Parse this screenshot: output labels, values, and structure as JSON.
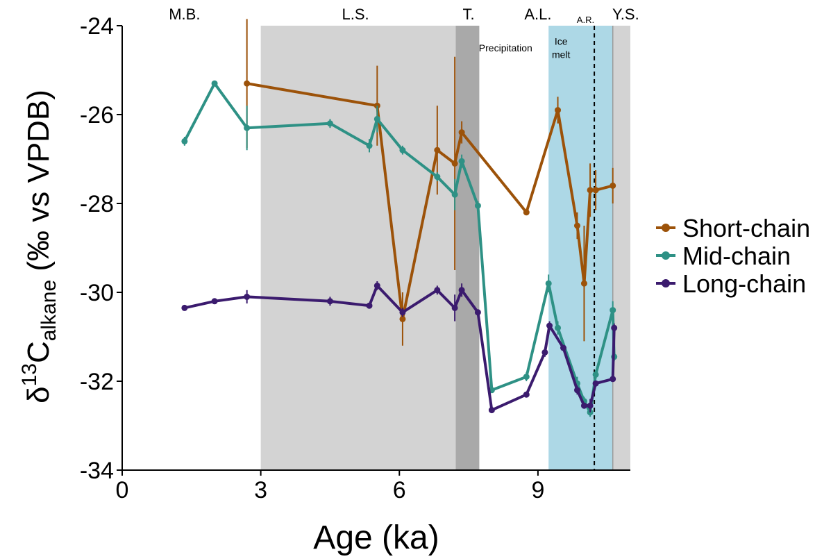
{
  "chart_data": {
    "type": "line",
    "xlabel": "Age (ka)",
    "ylabel_main": "δ",
    "ylabel_sup": "13",
    "ylabel_c": "C",
    "ylabel_sub": "alkane",
    "ylabel_tail": " (‰ vs VPDB)",
    "xlim": [
      0,
      11
    ],
    "ylim": [
      -34,
      -24
    ],
    "x_ticks": [
      "0",
      "3",
      "6",
      "9"
    ],
    "x_tick_values": [
      0,
      3,
      6,
      9
    ],
    "y_ticks": [
      "-34",
      "-32",
      "-30",
      "-28",
      "-26",
      "-24"
    ],
    "y_tick_values": [
      -34,
      -32,
      -30,
      -28,
      -26,
      -24
    ],
    "periods": [
      {
        "label": "M.B.",
        "x": 1.35
      },
      {
        "label": "L.S.",
        "x": 5.05
      },
      {
        "label": "T.",
        "x": 7.5
      },
      {
        "label": "A.L.",
        "x": 9.0
      },
      {
        "label": "A.R.",
        "x": 10.03
      },
      {
        "label": "Y.S.",
        "x": 10.9
      }
    ],
    "shaded_regions": [
      {
        "x0": 3.0,
        "x1": 7.22,
        "color": "#d3d3d3"
      },
      {
        "x0": 7.22,
        "x1": 7.73,
        "color": "#a9a9a9"
      },
      {
        "x0": 9.23,
        "x1": 10.62,
        "color": "#add8e6"
      },
      {
        "x0": 10.62,
        "x1": 11.0,
        "color": "#d3d3d3"
      }
    ],
    "annotations": [
      {
        "text": "Precipitation",
        "x": 8.3,
        "y": -24.5
      },
      {
        "text": "Ice",
        "x": 9.5,
        "y": -24.35
      },
      {
        "text": "melt",
        "x": 9.5,
        "y": -24.65
      }
    ],
    "dashed_line_x": 10.22,
    "legend_position": "right",
    "series": [
      {
        "name": "Short-chain",
        "color": "#9c5209",
        "x": [
          2.7,
          5.52,
          6.07,
          6.82,
          7.2,
          7.35,
          8.75,
          9.43,
          9.85,
          10.0,
          10.13,
          10.25,
          10.62
        ],
        "y": [
          -25.3,
          -25.8,
          -30.6,
          -26.8,
          -27.1,
          -26.4,
          -28.2,
          -25.9,
          -28.5,
          -29.8,
          -27.7,
          -27.7,
          -27.6
        ],
        "err": [
          1.45,
          0.9,
          0.6,
          1.0,
          2.4,
          0.25,
          0.0,
          0.3,
          0.3,
          1.3,
          0.6,
          0.45,
          0.4
        ]
      },
      {
        "name": "Mid-chain",
        "color": "#2e9185",
        "x": [
          1.35,
          2.0,
          2.7,
          4.5,
          5.35,
          5.52,
          6.07,
          6.82,
          7.2,
          7.35,
          7.7,
          8.0,
          8.75,
          9.23,
          9.43,
          9.85,
          10.0,
          10.13,
          10.25,
          10.62,
          10.65
        ],
        "y": [
          -26.6,
          -25.3,
          -26.3,
          -26.2,
          -26.7,
          -26.1,
          -26.8,
          -27.4,
          -27.8,
          -27.05,
          -28.05,
          -32.2,
          -31.9,
          -29.8,
          -30.8,
          -32.05,
          -32.45,
          -32.7,
          -31.85,
          -30.4,
          -31.45
        ],
        "err": [
          0.1,
          0.05,
          0.5,
          0.1,
          0.15,
          0.3,
          0.1,
          0.1,
          0.35,
          0.15,
          0.1,
          0.05,
          0.1,
          0.2,
          0.15,
          0.15,
          0.1,
          0.1,
          0.1,
          0.2,
          0.1
        ]
      },
      {
        "name": "Long-chain",
        "color": "#3b1b6e",
        "x": [
          1.35,
          2.0,
          2.7,
          4.5,
          5.35,
          5.52,
          6.07,
          6.82,
          7.2,
          7.35,
          7.7,
          8.0,
          8.75,
          9.15,
          9.25,
          9.55,
          9.85,
          10.0,
          10.13,
          10.25,
          10.62,
          10.65
        ],
        "y": [
          -30.35,
          -30.2,
          -30.1,
          -30.2,
          -30.3,
          -29.85,
          -30.45,
          -29.95,
          -30.35,
          -29.95,
          -30.45,
          -32.65,
          -32.3,
          -31.35,
          -30.75,
          -31.25,
          -32.2,
          -32.55,
          -32.55,
          -32.05,
          -31.95,
          -30.8
        ],
        "err": [
          0.05,
          0.05,
          0.15,
          0.1,
          0.05,
          0.1,
          0.1,
          0.1,
          0.3,
          0.15,
          0.05,
          0.05,
          0.05,
          0.1,
          0.1,
          0.05,
          0.1,
          0.05,
          0.15,
          0.05,
          0.05,
          0.1
        ]
      }
    ]
  }
}
